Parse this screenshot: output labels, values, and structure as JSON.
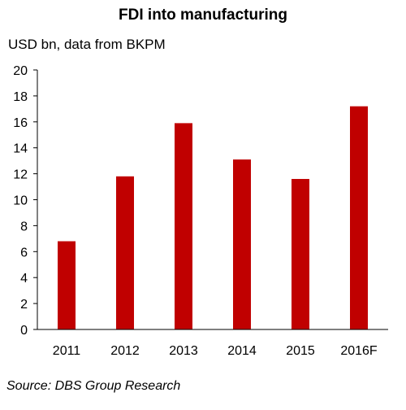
{
  "chart_data": {
    "type": "bar",
    "title": "FDI into manufacturing",
    "subtitle": "USD bn, data from BKPM",
    "categories": [
      "2011",
      "2012",
      "2013",
      "2014",
      "2015",
      "2016F"
    ],
    "values": [
      6.8,
      11.8,
      15.9,
      13.1,
      11.6,
      17.2
    ],
    "ylim": [
      0,
      20
    ],
    "yticks": [
      0,
      2,
      4,
      6,
      8,
      10,
      12,
      14,
      16,
      18,
      20
    ],
    "bar_color": "#c00000",
    "grid": false,
    "source": "Source: DBS Group Research"
  }
}
